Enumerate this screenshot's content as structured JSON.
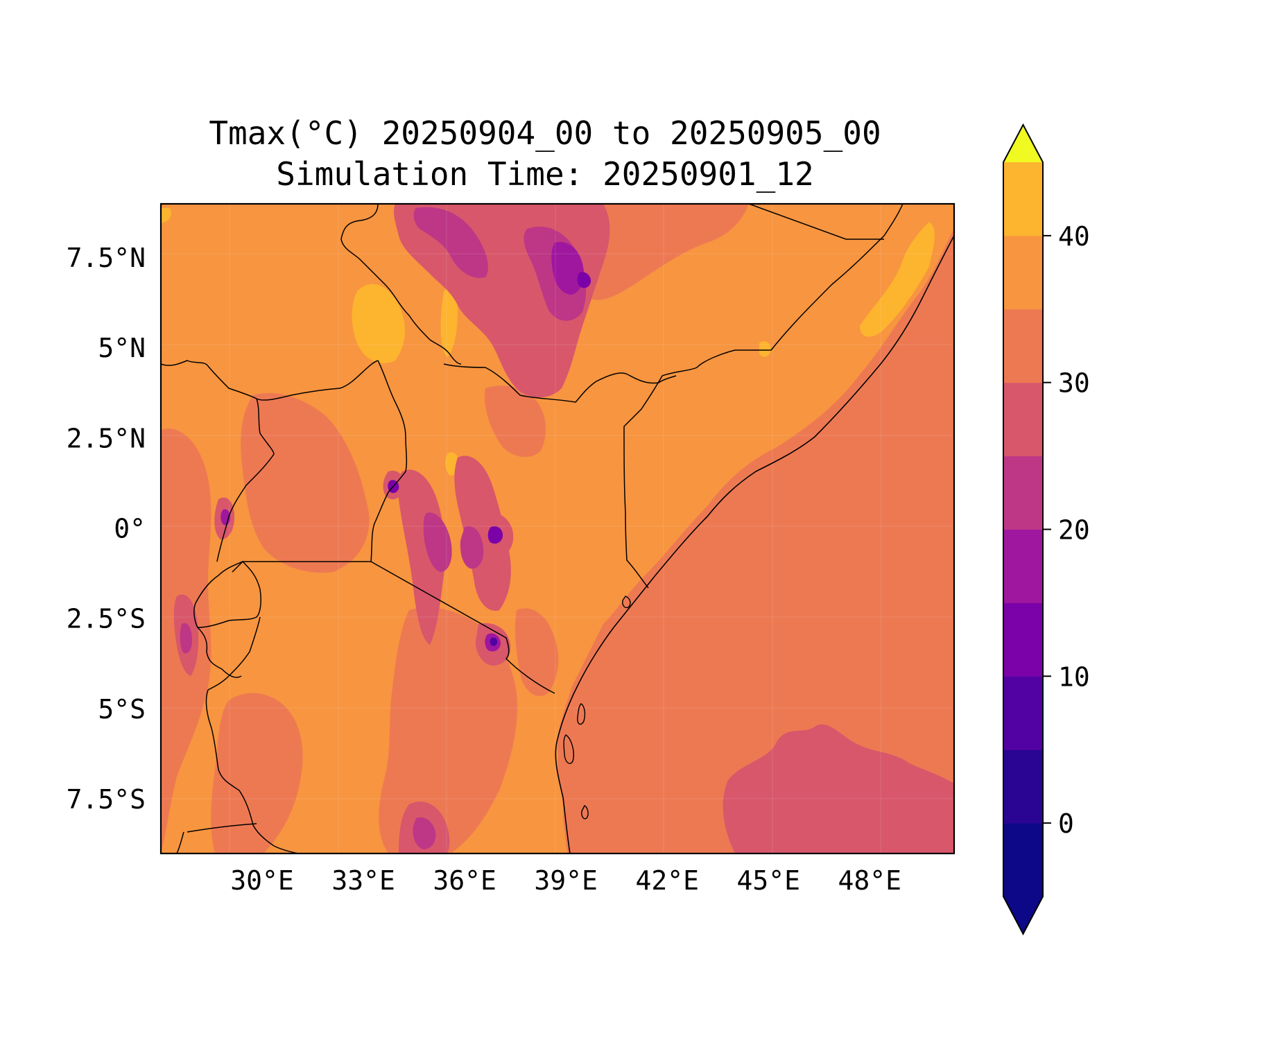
{
  "title_line1": "Tmax(°C) 20250904_00 to 20250905_00",
  "title_line2": "Simulation Time: 20250901_12",
  "map": {
    "lon_range": [
      27.0,
      50.5
    ],
    "lat_range": [
      -9.0,
      9.0
    ],
    "x_ticks": [
      {
        "value": 30,
        "label": "30°E"
      },
      {
        "value": 33,
        "label": "33°E"
      },
      {
        "value": 36,
        "label": "36°E"
      },
      {
        "value": 39,
        "label": "39°E"
      },
      {
        "value": 42,
        "label": "42°E"
      },
      {
        "value": 45,
        "label": "45°E"
      },
      {
        "value": 48,
        "label": "48°E"
      }
    ],
    "y_ticks": [
      {
        "value": 7.5,
        "label": "7.5°N"
      },
      {
        "value": 5,
        "label": "5°N"
      },
      {
        "value": 2.5,
        "label": "2.5°N"
      },
      {
        "value": 0,
        "label": "0°"
      },
      {
        "value": -2.5,
        "label": "2.5°S"
      },
      {
        "value": -5,
        "label": "5°S"
      },
      {
        "value": -7.5,
        "label": "7.5°S"
      }
    ],
    "gridlines": true
  },
  "colorbar": {
    "orientation": "vertical",
    "extend": "both",
    "levels": [
      -5,
      0,
      5,
      10,
      15,
      20,
      25,
      30,
      35,
      40,
      45
    ],
    "colors": [
      "#0d0887",
      "#2a0593",
      "#5202a3",
      "#7a02a8",
      "#9e179e",
      "#bd3786",
      "#d8576b",
      "#ed7953",
      "#f79540",
      "#fdb42f",
      "#f6e726"
    ],
    "under_color": "#0d0887",
    "over_color": "#f0f921",
    "tick_labels": [
      {
        "value": 0,
        "label": "0"
      },
      {
        "value": 10,
        "label": "10"
      },
      {
        "value": 20,
        "label": "20"
      },
      {
        "value": 30,
        "label": "30"
      },
      {
        "value": 40,
        "label": "40"
      }
    ]
  }
}
